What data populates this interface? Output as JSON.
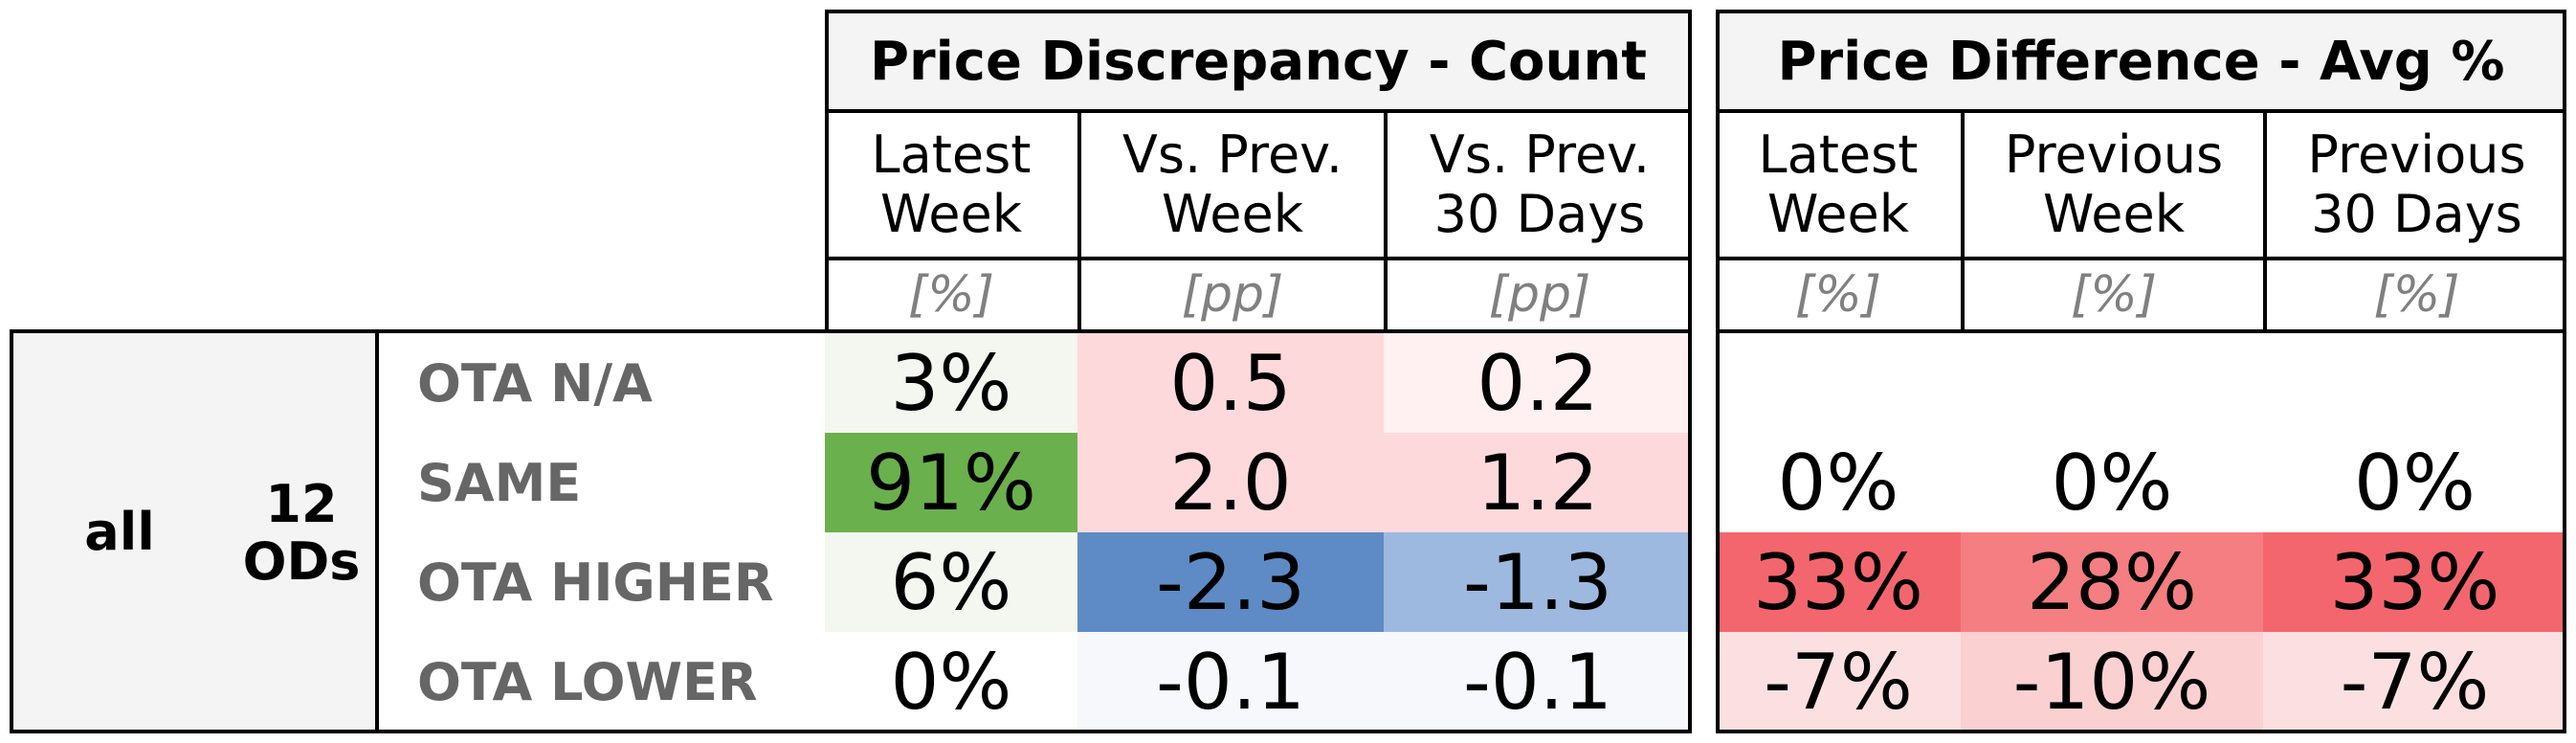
{
  "chart_data": {
    "type": "table",
    "groups": [
      {
        "title": "Price Discrepancy - Count",
        "columns": [
          {
            "label": "Latest\nWeek",
            "unit": "[%]"
          },
          {
            "label": "Vs. Prev.\nWeek",
            "unit": "[pp]"
          },
          {
            "label": "Vs. Prev.\n30 Days",
            "unit": "[pp]"
          }
        ]
      },
      {
        "title": "Price Difference - Avg %",
        "columns": [
          {
            "label": "Latest\nWeek",
            "unit": "[%]"
          },
          {
            "label": "Previous\nWeek",
            "unit": "[%]"
          },
          {
            "label": "Previous\n30 Days",
            "unit": "[%]"
          }
        ]
      }
    ],
    "segment": "all",
    "od_count": "12\nODs",
    "rows": [
      {
        "label": "OTA N/A",
        "count": [
          {
            "text": "3%",
            "value": 3
          },
          {
            "text": "0.5",
            "value": 0.5
          },
          {
            "text": "0.2",
            "value": 0.2
          }
        ],
        "diff": [
          {
            "text": "",
            "value": null
          },
          {
            "text": "",
            "value": null
          },
          {
            "text": "",
            "value": null
          }
        ]
      },
      {
        "label": "SAME",
        "count": [
          {
            "text": "91%",
            "value": 91
          },
          {
            "text": "2.0",
            "value": 2.0
          },
          {
            "text": "1.2",
            "value": 1.2
          }
        ],
        "diff": [
          {
            "text": "0%",
            "value": 0
          },
          {
            "text": "0%",
            "value": 0
          },
          {
            "text": "0%",
            "value": 0
          }
        ]
      },
      {
        "label": "OTA HIGHER",
        "count": [
          {
            "text": "6%",
            "value": 6
          },
          {
            "text": "-2.3",
            "value": -2.3
          },
          {
            "text": "-1.3",
            "value": -1.3
          }
        ],
        "diff": [
          {
            "text": "33%",
            "value": 33
          },
          {
            "text": "28%",
            "value": 28
          },
          {
            "text": "33%",
            "value": 33
          }
        ]
      },
      {
        "label": "OTA LOWER",
        "count": [
          {
            "text": "0%",
            "value": 0
          },
          {
            "text": "-0.1",
            "value": -0.1
          },
          {
            "text": "-0.1",
            "value": -0.1
          }
        ],
        "diff": [
          {
            "text": "-7%",
            "value": -7
          },
          {
            "text": "-10%",
            "value": -10
          },
          {
            "text": "-7%",
            "value": -7
          }
        ]
      }
    ],
    "colors": {
      "count_pct_high": "#6ab04c",
      "count_pct_low": "#f4f7f0",
      "pp_positive": "#fdd9dc",
      "pp_positive_light": "#fff0f1",
      "pp_negative": "#5e8bc5",
      "pp_negative_light": "#9db9df",
      "pp_negative_faint": "#f6f8fb",
      "diff_high": "#f4666e",
      "diff_mid": "#f47e82",
      "diff_low": "#fce0e1",
      "diff_low_mid": "#fad0d1"
    }
  }
}
